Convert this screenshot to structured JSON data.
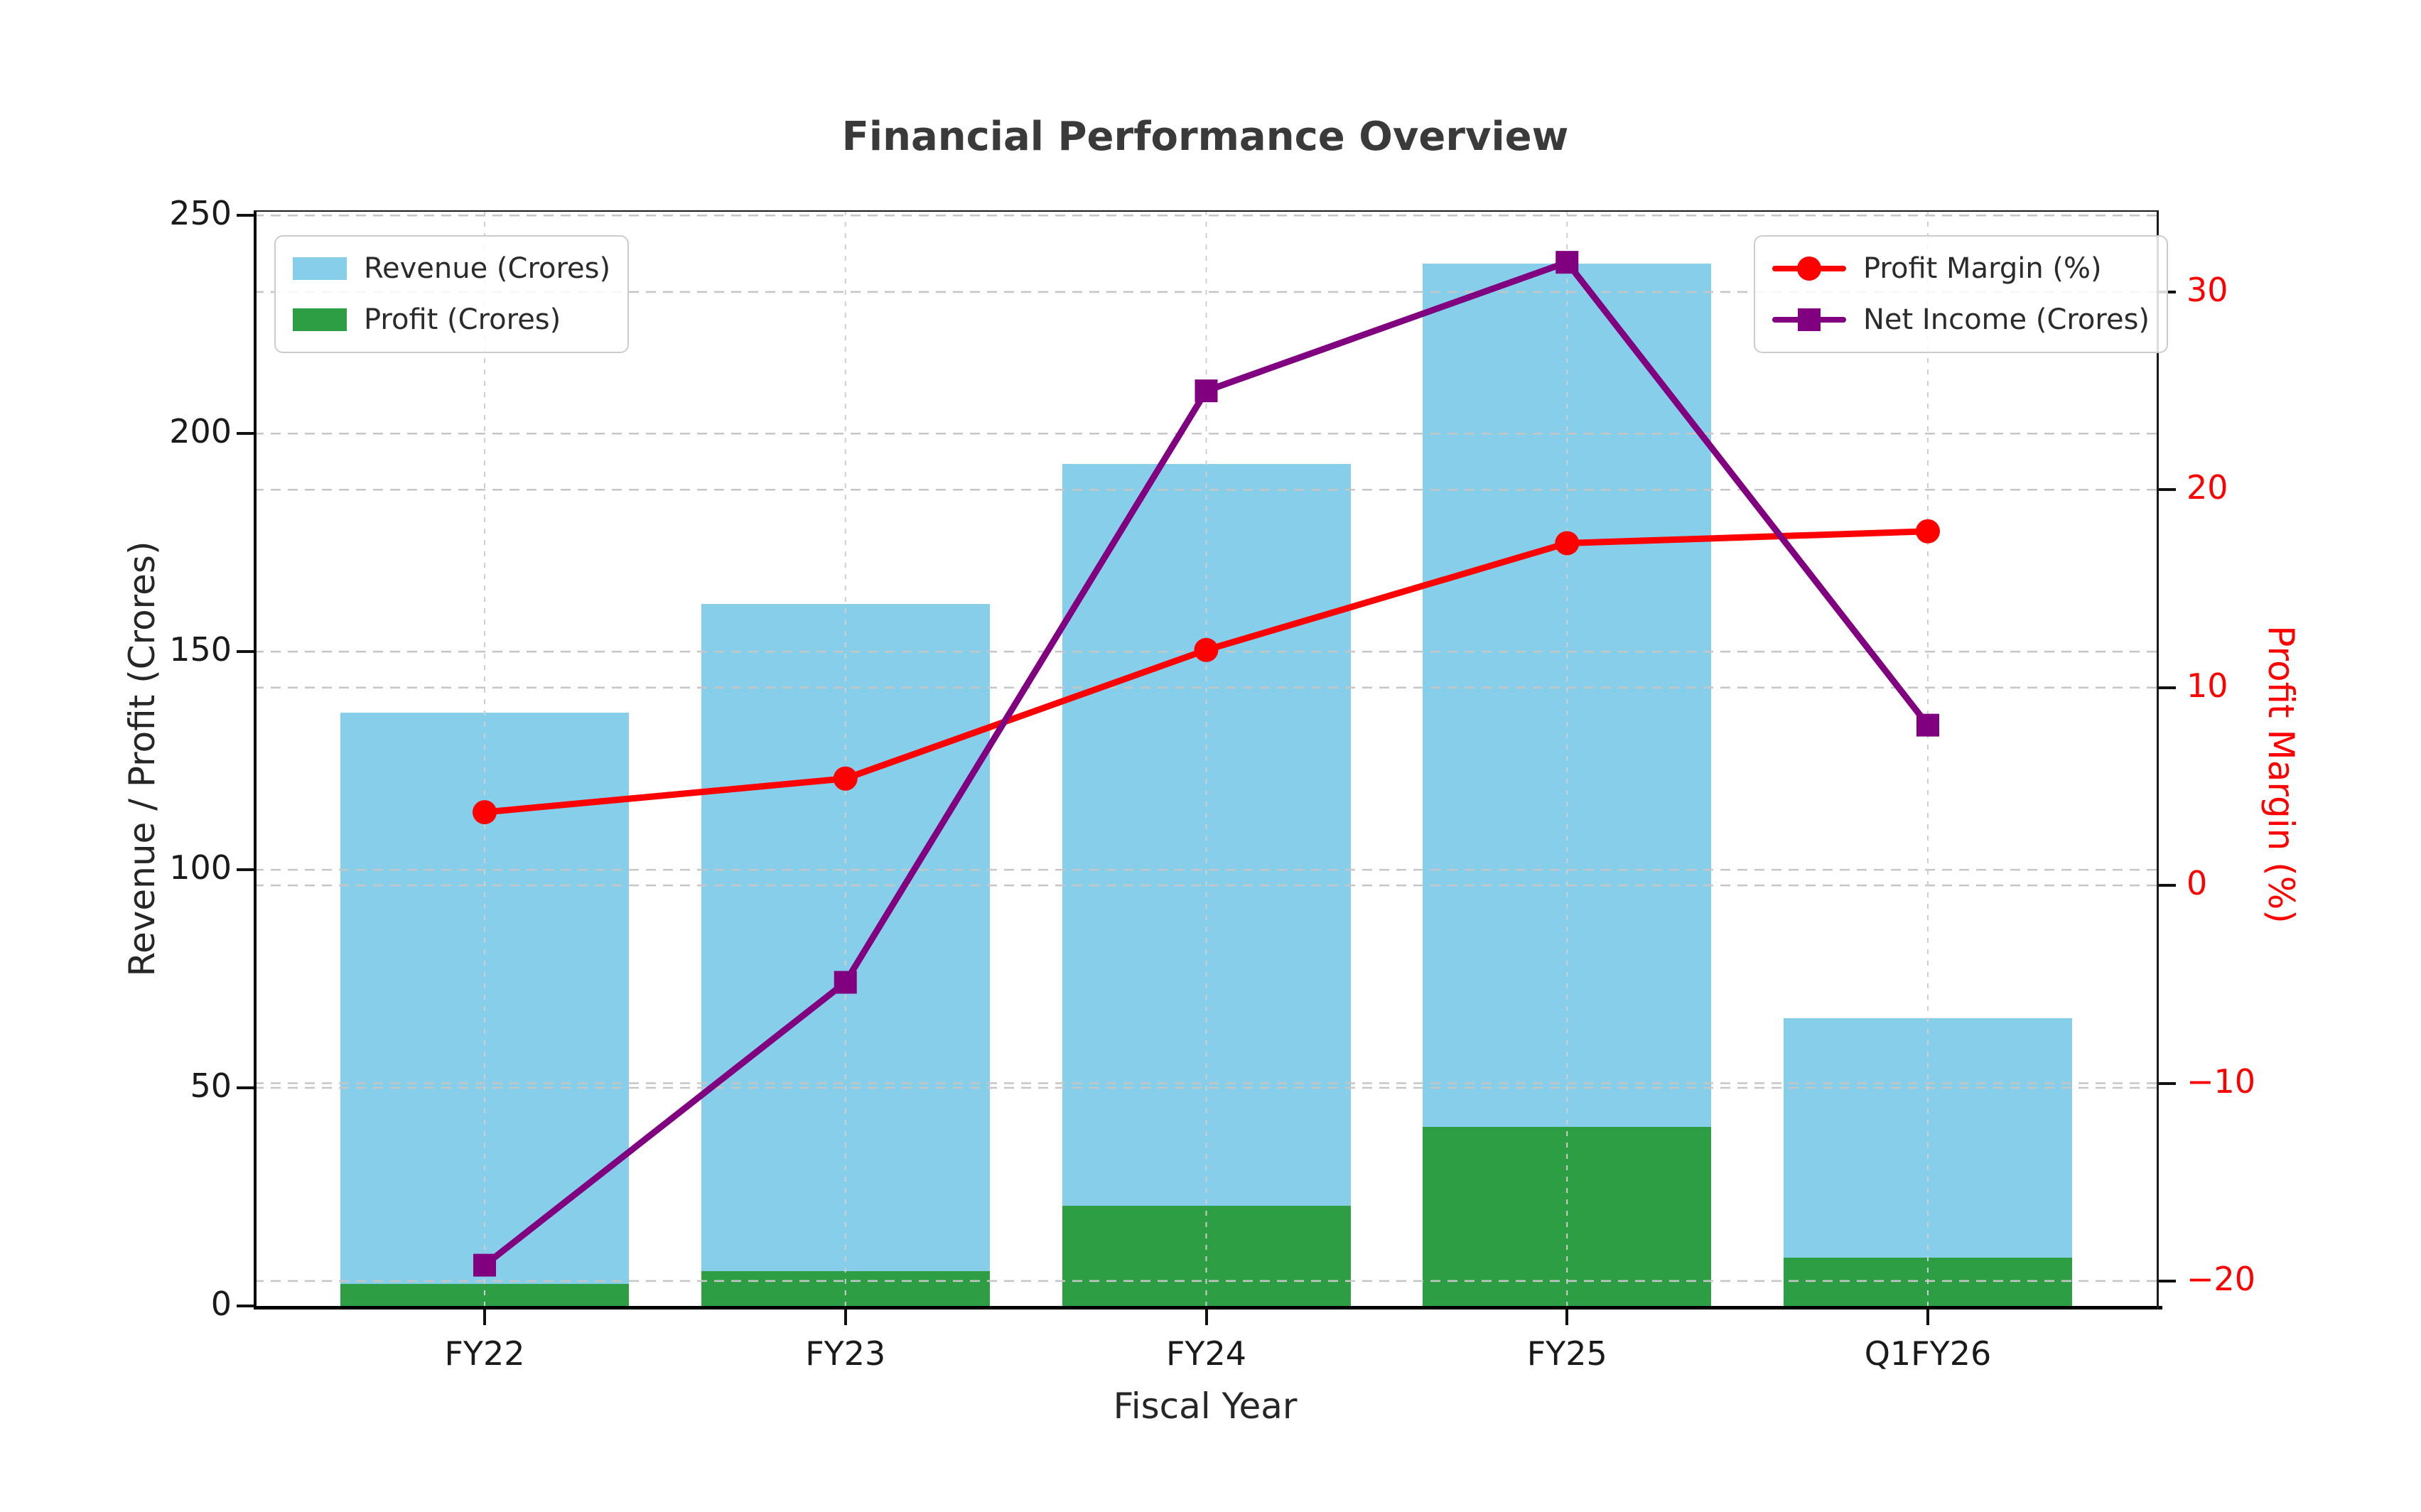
{
  "figure": {
    "title": "Financial Performance Overview",
    "background": "#ffffff",
    "border_color": "#000000"
  },
  "chart_data": {
    "type": "combo-bar-line-dual-axis",
    "title": "Financial Performance Overview",
    "categories": [
      "FY22",
      "FY23",
      "FY24",
      "FY25",
      "Q1FY26"
    ],
    "xlabel": "Fiscal Year",
    "axes": {
      "left": {
        "label": "Revenue / Profit (Crores)",
        "ticks": [
          0,
          50,
          100,
          150,
          200,
          250
        ],
        "lim": [
          0,
          251
        ],
        "tick_color": "#1a1a1a"
      },
      "right": {
        "label": "Profit Margin (%)",
        "ticks": [
          -20,
          -10,
          0,
          10,
          20,
          30
        ],
        "lim": [
          -21.3,
          34.3
        ],
        "tick_color": "#ff0000"
      }
    },
    "series": [
      {
        "name": "Revenue (Crores)",
        "type": "bar",
        "axis": "left",
        "color": "#87CEEB",
        "values": [
          136,
          161,
          193,
          239,
          66
        ]
      },
      {
        "name": "Profit (Crores)",
        "type": "bar",
        "axis": "left",
        "color": "#2E9E44",
        "values": [
          5,
          8,
          23,
          41,
          11
        ]
      },
      {
        "name": "Profit Margin (%)",
        "type": "line",
        "marker": "circle",
        "axis": "right",
        "color": "#FF0000",
        "values": [
          3.7,
          5.4,
          11.9,
          17.3,
          17.9
        ]
      },
      {
        "name": "Net Income (Crores)",
        "type": "line",
        "marker": "square",
        "axis": "right",
        "color": "#800080",
        "values": [
          -19.2,
          -4.9,
          25.0,
          31.5,
          8.1
        ]
      }
    ],
    "legend_left": [
      "Revenue (Crores)",
      "Profit (Crores)"
    ],
    "legend_right": [
      "Profit Margin (%)",
      "Net Income (Crores)"
    ],
    "grid": "dashed horizontal gridlines for both y axes, dashed vertical gridlines at each category",
    "legend_positions": {
      "left_legend": "upper left",
      "right_legend": "upper right"
    }
  },
  "colors": {
    "revenue": "#87CEEB",
    "profit": "#2E9E44",
    "margin": "#FF0000",
    "net_income": "#800080",
    "grid": "#c6c6c6",
    "text": "#262626"
  }
}
